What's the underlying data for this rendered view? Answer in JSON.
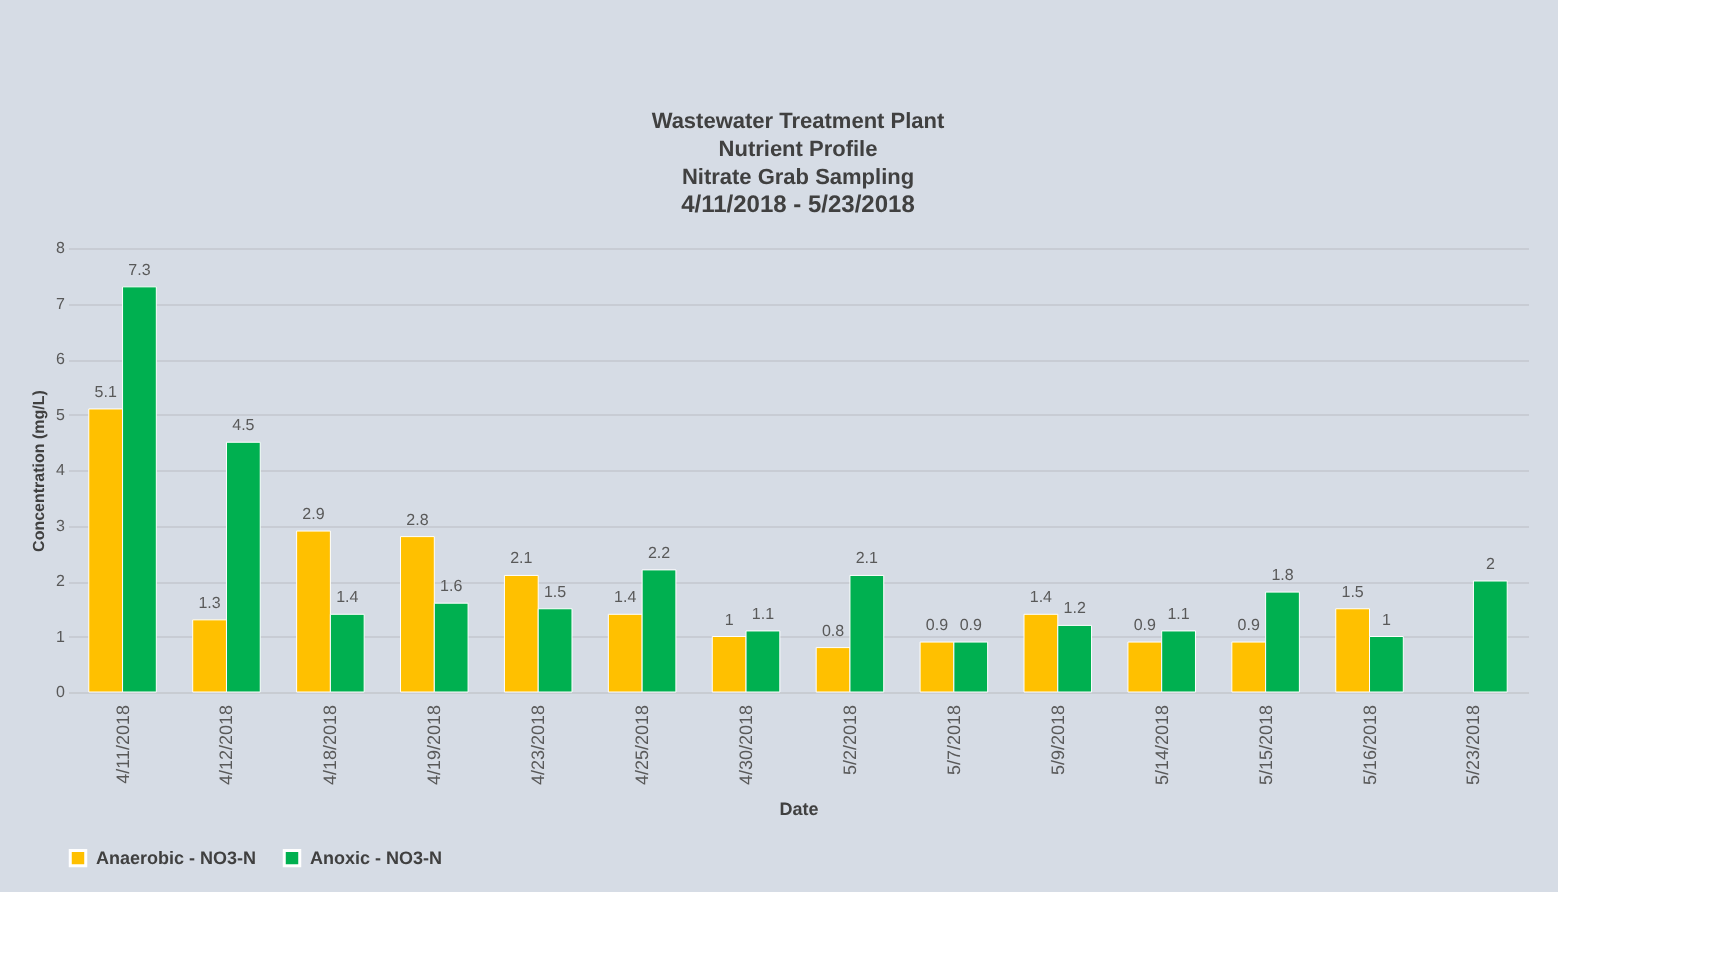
{
  "chart_data": {
    "type": "bar",
    "title": "Wastewater Treatment Plant\nNutrient Profile\nNitrate Grab Sampling",
    "subtitle": "4/11/2018 - 5/23/2018",
    "xlabel": "Date",
    "ylabel": "Concentration (mg/L)",
    "categories": [
      "4/11/2018",
      "4/12/2018",
      "4/18/2018",
      "4/19/2018",
      "4/23/2018",
      "4/25/2018",
      "4/30/2018",
      "5/2/2018",
      "5/7/2018",
      "5/9/2018",
      "5/14/2018",
      "5/15/2018",
      "5/16/2018",
      "5/23/2018"
    ],
    "series": [
      {
        "name": "Anaerobic - NO3-N",
        "color": "#ffc000",
        "values": [
          5.1,
          1.3,
          2.9,
          2.8,
          2.1,
          1.4,
          1,
          0.8,
          0.9,
          1.4,
          0.9,
          0.9,
          1.5,
          null
        ]
      },
      {
        "name": "Anoxic - NO3-N",
        "color": "#00b050",
        "values": [
          7.3,
          4.5,
          1.4,
          1.6,
          1.5,
          2.2,
          1.1,
          2.1,
          0.9,
          1.2,
          1.1,
          1.8,
          1,
          2
        ]
      }
    ],
    "ylim": [
      0,
      8
    ],
    "yticks": [
      0,
      1,
      2,
      3,
      4,
      5,
      6,
      7,
      8
    ],
    "grid": "y",
    "legend": "bottom",
    "data_labels": true
  }
}
